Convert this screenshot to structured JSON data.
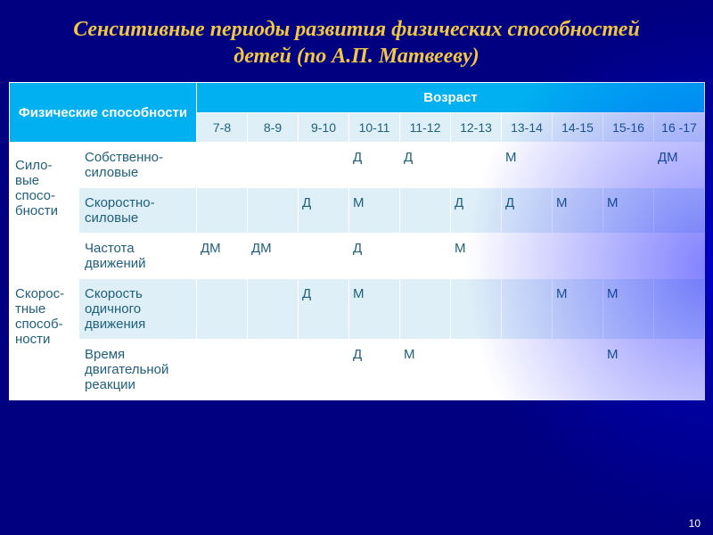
{
  "title": "Сенситивные периоды развития физических способностей детей (по А.П. Матвееву)",
  "header": {
    "abilities": "Физические способности",
    "age": "Возраст"
  },
  "ages": [
    "7-8",
    "8-9",
    "9-10",
    "10-11",
    "11-12",
    "12-13",
    "13-14",
    "14-15",
    "15-16",
    "16 -17"
  ],
  "groups": [
    {
      "name": "Сило-вые спосо-бности",
      "rows": [
        {
          "label": "Собственно-силовые",
          "cells": [
            "",
            "",
            "",
            "Д",
            "Д",
            "",
            "М",
            "",
            "",
            "ДМ"
          ]
        },
        {
          "label": "Скоростно-силовые",
          "cells": [
            "",
            "",
            "Д",
            "М",
            "",
            "Д",
            "Д",
            "М",
            "М",
            ""
          ]
        }
      ]
    },
    {
      "name": "Скорос-тные способ-ности",
      "rows": [
        {
          "label": "Частота движений",
          "cells": [
            "ДМ",
            "ДМ",
            "",
            "Д",
            "",
            "М",
            "",
            "",
            "",
            ""
          ]
        },
        {
          "label": "Скорость одичного движения",
          "cells": [
            "",
            "",
            "Д",
            "М",
            "",
            "",
            "",
            "М",
            "М",
            ""
          ]
        },
        {
          "label": "Время двигательной реакции",
          "cells": [
            "",
            "",
            "",
            "Д",
            "М",
            "",
            "",
            "",
            "М",
            ""
          ]
        }
      ]
    }
  ],
  "slide_number": "10",
  "colors": {
    "page_bg": "#000080",
    "title": "#f2c744",
    "th_bg": "#00b0f0",
    "th_fg": "#ffffff",
    "row_alt_bg": "#deeff7",
    "row_bg": "#ffffff",
    "cell_text": "#1f5f7a",
    "border": "#ffffff"
  }
}
